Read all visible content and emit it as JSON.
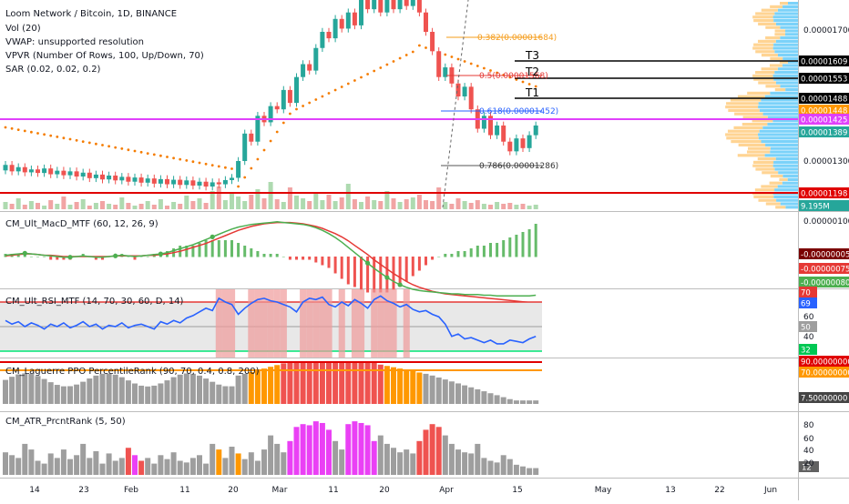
{
  "colors": {
    "up": "#26a69a",
    "down": "#ef5350",
    "magenta_line": "#e040fb",
    "red_line": "#e00000",
    "fib": "#f59c1a",
    "sar": "#f57c00",
    "macd_line": "#4caf50",
    "signal_line": "#e53935",
    "rsi_line": "#2962ff",
    "orange_bar": "#ff9800",
    "gray_bar": "#9e9e9e",
    "red_bar": "#ef5350",
    "pink_bar": "#ea40f5"
  },
  "legend": {
    "title": "Loom Network / Bitcoin, 1D, BINANCE",
    "vol": "Vol (20)",
    "vwap": "VWAP: unsupported resolution",
    "vpvr": "VPVR (Number Of Rows, 100, Up/Down, 70)",
    "sar": "SAR (0.02, 0.02, 0.2)"
  },
  "fib": {
    "f382": "0.382(0.00001684)",
    "f5": "0.5(0.00001568)",
    "f618": "0.618(0.00001452)",
    "f786": "0.786(0.00001286)"
  },
  "targets": {
    "t3": "T3",
    "t2": "T2",
    "t1": "T1"
  },
  "price_scale": {
    "ticks": [
      "0.00001700",
      "0.00001300"
    ],
    "badges": [
      {
        "label": "0.00001609",
        "color": "#000000"
      },
      {
        "label": "0.00001553",
        "color": "#000000"
      },
      {
        "label": "0.00001488",
        "color": "#000000"
      },
      {
        "label": "0.00001448",
        "color": "#ff9800"
      },
      {
        "label": "0.00001425",
        "color": "#e040fb"
      },
      {
        "label": "0.00001389",
        "color": "#26a69a"
      },
      {
        "label": "0.00001198",
        "color": "#e00000"
      },
      {
        "label": "9.195M",
        "color": "#26a69a"
      }
    ]
  },
  "macd_panel": {
    "label": "CM_Ult_MacD_MTF (60, 12, 26, 9)",
    "tick": "0.00000100",
    "badges": [
      {
        "label": "-0.00000005",
        "color": "#7a0000"
      },
      {
        "label": "-0.00000075",
        "color": "#e53935"
      },
      {
        "label": "-0.00000080",
        "color": "#4caf50"
      }
    ]
  },
  "rsi_panel": {
    "label": "CM_Ult_RSI_MTF (14, 70, 30, 60, D, 14)",
    "ticks": [
      "70",
      "69",
      "60",
      "50",
      "40",
      "32"
    ],
    "values": [
      55,
      52,
      54,
      50,
      53,
      51,
      48,
      52,
      50,
      53,
      49,
      51,
      54,
      50,
      52,
      48,
      51,
      50,
      53,
      49,
      51,
      52,
      50,
      48,
      54,
      52,
      55,
      53,
      57,
      59,
      62,
      65,
      63,
      73,
      70,
      68,
      60,
      65,
      69,
      72,
      73,
      71,
      70,
      68,
      66,
      62,
      70,
      73,
      72,
      74,
      68,
      66,
      70,
      67,
      72,
      69,
      65,
      72,
      75,
      71,
      69,
      66,
      68,
      64,
      62,
      63,
      60,
      58,
      52,
      42,
      44,
      40,
      41,
      39,
      37,
      39,
      36,
      36,
      39,
      38,
      37,
      40,
      42
    ]
  },
  "laguerre_panel": {
    "label": "CM_Laguerre PPO PercentileRank (90, 70, 0.4, 0.8, 200)",
    "badges": [
      {
        "label": "90.00000000",
        "color": "#e00000"
      },
      {
        "label": "70.00000000",
        "color": "#ff9800"
      },
      {
        "label": "7.50000000",
        "color": "#444444"
      }
    ]
  },
  "atr_panel": {
    "label": "CM_ATR_PrcntRank (5, 50)",
    "ticks": [
      "80",
      "60",
      "40",
      "20"
    ],
    "badge": "12"
  },
  "x_axis": [
    {
      "label": "14"
    },
    {
      "label": "23"
    },
    {
      "label": "Feb"
    },
    {
      "label": "11"
    },
    {
      "label": "20"
    },
    {
      "label": "Mar"
    },
    {
      "label": "11"
    },
    {
      "label": "20"
    },
    {
      "label": "Apr"
    },
    {
      "label": "15"
    },
    {
      "label": "May"
    },
    {
      "label": "13"
    },
    {
      "label": "22"
    },
    {
      "label": "Jun"
    }
  ],
  "chart_data": {
    "type": "candlestick",
    "title": "Loom Network / Bitcoin, 1D, BINANCE",
    "xlabel": "",
    "ylabel": "",
    "x_ticks": [
      "14",
      "23",
      "Feb",
      "11",
      "20",
      "Mar",
      "11",
      "20",
      "Apr",
      "15",
      "May",
      "13",
      "22",
      "Jun"
    ],
    "y_ticks": [
      "0.00001700",
      "0.00001300"
    ],
    "candles": [
      [
        1271,
        1288
      ],
      [
        1288,
        1268
      ],
      [
        1268,
        1281
      ],
      [
        1281,
        1265
      ],
      [
        1265,
        1274
      ],
      [
        1274,
        1263
      ],
      [
        1263,
        1277
      ],
      [
        1277,
        1259
      ],
      [
        1259,
        1270
      ],
      [
        1270,
        1256
      ],
      [
        1256,
        1268
      ],
      [
        1268,
        1252
      ],
      [
        1252,
        1264
      ],
      [
        1264,
        1247
      ],
      [
        1247,
        1258
      ],
      [
        1258,
        1243
      ],
      [
        1243,
        1255
      ],
      [
        1255,
        1240
      ],
      [
        1240,
        1251
      ],
      [
        1251,
        1236
      ],
      [
        1236,
        1249
      ],
      [
        1249,
        1233
      ],
      [
        1233,
        1246
      ],
      [
        1246,
        1230
      ],
      [
        1230,
        1244
      ],
      [
        1244,
        1228
      ],
      [
        1228,
        1242
      ],
      [
        1242,
        1226
      ],
      [
        1226,
        1240
      ],
      [
        1240,
        1224
      ],
      [
        1224,
        1236
      ],
      [
        1236,
        1221
      ],
      [
        1221,
        1234
      ],
      [
        1234,
        1228
      ],
      [
        1228,
        1241
      ],
      [
        1241,
        1248
      ],
      [
        1248,
        1300
      ],
      [
        1300,
        1385
      ],
      [
        1385,
        1360
      ],
      [
        1360,
        1440
      ],
      [
        1440,
        1420
      ],
      [
        1420,
        1470
      ],
      [
        1470,
        1460
      ],
      [
        1460,
        1520
      ],
      [
        1520,
        1480
      ],
      [
        1480,
        1560
      ],
      [
        1560,
        1600
      ],
      [
        1600,
        1580
      ],
      [
        1580,
        1650
      ],
      [
        1650,
        1700
      ],
      [
        1700,
        1680
      ],
      [
        1680,
        1740
      ],
      [
        1740,
        1710
      ],
      [
        1710,
        1760
      ],
      [
        1760,
        1720
      ],
      [
        1720,
        1800
      ],
      [
        1800,
        1770
      ],
      [
        1770,
        1830
      ],
      [
        1830,
        1760
      ],
      [
        1760,
        1800
      ],
      [
        1800,
        1770
      ],
      [
        1770,
        1820
      ],
      [
        1820,
        1780
      ],
      [
        1780,
        1810
      ],
      [
        1810,
        1760
      ],
      [
        1760,
        1700
      ],
      [
        1700,
        1640
      ],
      [
        1640,
        1560
      ],
      [
        1560,
        1590
      ],
      [
        1590,
        1540
      ],
      [
        1540,
        1500
      ],
      [
        1500,
        1530
      ],
      [
        1530,
        1460
      ],
      [
        1460,
        1400
      ],
      [
        1400,
        1440
      ],
      [
        1440,
        1380
      ],
      [
        1380,
        1410
      ],
      [
        1410,
        1360
      ],
      [
        1360,
        1330
      ],
      [
        1330,
        1370
      ],
      [
        1370,
        1340
      ],
      [
        1340,
        1380
      ],
      [
        1380,
        1410
      ]
    ],
    "volume": [
      8,
      6,
      12,
      5,
      9,
      7,
      4,
      10,
      6,
      14,
      5,
      8,
      11,
      4,
      7,
      9,
      6,
      5,
      13,
      7,
      4,
      6,
      9,
      5,
      11,
      4,
      8,
      6,
      15,
      9,
      12,
      7,
      20,
      25,
      10,
      18,
      14,
      9,
      16,
      22,
      12,
      30,
      11,
      8,
      24,
      15,
      12,
      9,
      18,
      10,
      16,
      9,
      13,
      28,
      11,
      8,
      14,
      10,
      9,
      20,
      12,
      8,
      11,
      13,
      16,
      10,
      9,
      24,
      8,
      6,
      12,
      9,
      7,
      10,
      6,
      5,
      8,
      6,
      7,
      5,
      6,
      4,
      5
    ],
    "macd": [
      2,
      3,
      4,
      5,
      4,
      3,
      2,
      1,
      0,
      -1,
      -1,
      0,
      1,
      0,
      -1,
      -1,
      0,
      1,
      2,
      1,
      0,
      1,
      2,
      3,
      4,
      6,
      9,
      12,
      15,
      18,
      22,
      26,
      30,
      34,
      38,
      42,
      45,
      47,
      49,
      50,
      51,
      52,
      53,
      52,
      51,
      50,
      49,
      47,
      44,
      40,
      35,
      29,
      22,
      14,
      6,
      -2,
      -10,
      -18,
      -25,
      -32,
      -38,
      -43,
      -47,
      -50,
      -52,
      -53,
      -54,
      -55,
      -56,
      -57,
      -57,
      -58,
      -58,
      -58,
      -59,
      -59,
      -60,
      -60,
      -60,
      -60,
      -60,
      -60,
      -59
    ],
    "signal": [
      1,
      2,
      3,
      4,
      4,
      3,
      2,
      2,
      1,
      0,
      0,
      0,
      0,
      0,
      0,
      0,
      0,
      1,
      1,
      1,
      1,
      1,
      2,
      2,
      3,
      4,
      6,
      8,
      11,
      14,
      17,
      20,
      24,
      28,
      32,
      36,
      40,
      43,
      46,
      48,
      50,
      51,
      52,
      52,
      52,
      51,
      50,
      48,
      46,
      43,
      39,
      35,
      30,
      24,
      17,
      10,
      3,
      -5,
      -12,
      -19,
      -26,
      -32,
      -38,
      -43,
      -47,
      -50,
      -53,
      -55,
      -57,
      -58,
      -59,
      -60,
      -61,
      -62,
      -63,
      -64,
      -65,
      -66,
      -67,
      -68,
      -69,
      -70,
      -71
    ]
  }
}
